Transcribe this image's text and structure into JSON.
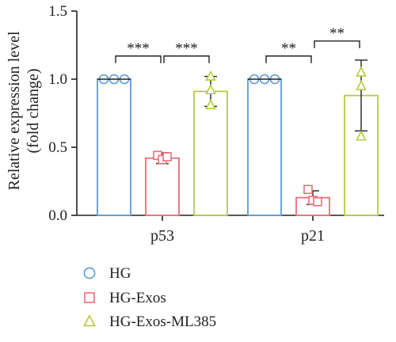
{
  "chart_data": {
    "type": "bar",
    "ylabel": "Relative expression level",
    "ylabel2": "(fold change)",
    "ylim": [
      0,
      1.5
    ],
    "yticks": [
      "0.0",
      "0.5",
      "1.0",
      "1.5"
    ],
    "categories": [
      "p53",
      "p21"
    ],
    "series": [
      {
        "name": "HG",
        "color": "#5b9bd5",
        "marker": "circle",
        "values": [
          1.0,
          1.0
        ],
        "errors": [
          0,
          0
        ],
        "points": [
          [
            1.0,
            1.0,
            1.0
          ],
          [
            1.0,
            1.0,
            1.0
          ]
        ]
      },
      {
        "name": "HG-Exos",
        "color": "#e8707a",
        "marker": "square",
        "values": [
          0.42,
          0.13
        ],
        "errors": [
          0.04,
          0.05
        ],
        "points": [
          [
            0.44,
            0.41,
            0.43
          ],
          [
            0.19,
            0.11,
            0.1
          ]
        ]
      },
      {
        "name": "HG-Exos-ML385",
        "color": "#b5cc3a",
        "marker": "triangle",
        "values": [
          0.91,
          0.88
        ],
        "errors": [
          0.11,
          0.26
        ],
        "points": [
          [
            1.02,
            0.92,
            0.81
          ],
          [
            1.05,
            0.95,
            0.58
          ]
        ]
      }
    ],
    "significance": [
      {
        "category": 0,
        "from": 0,
        "to": 1,
        "label": "***",
        "y": 1.17
      },
      {
        "category": 0,
        "from": 1,
        "to": 2,
        "label": "***",
        "y": 1.17
      },
      {
        "category": 1,
        "from": 0,
        "to": 1,
        "label": "**",
        "y": 1.17
      },
      {
        "category": 1,
        "from": 1,
        "to": 2,
        "label": "**",
        "y": 1.28
      }
    ],
    "legend_position": "bottom"
  }
}
